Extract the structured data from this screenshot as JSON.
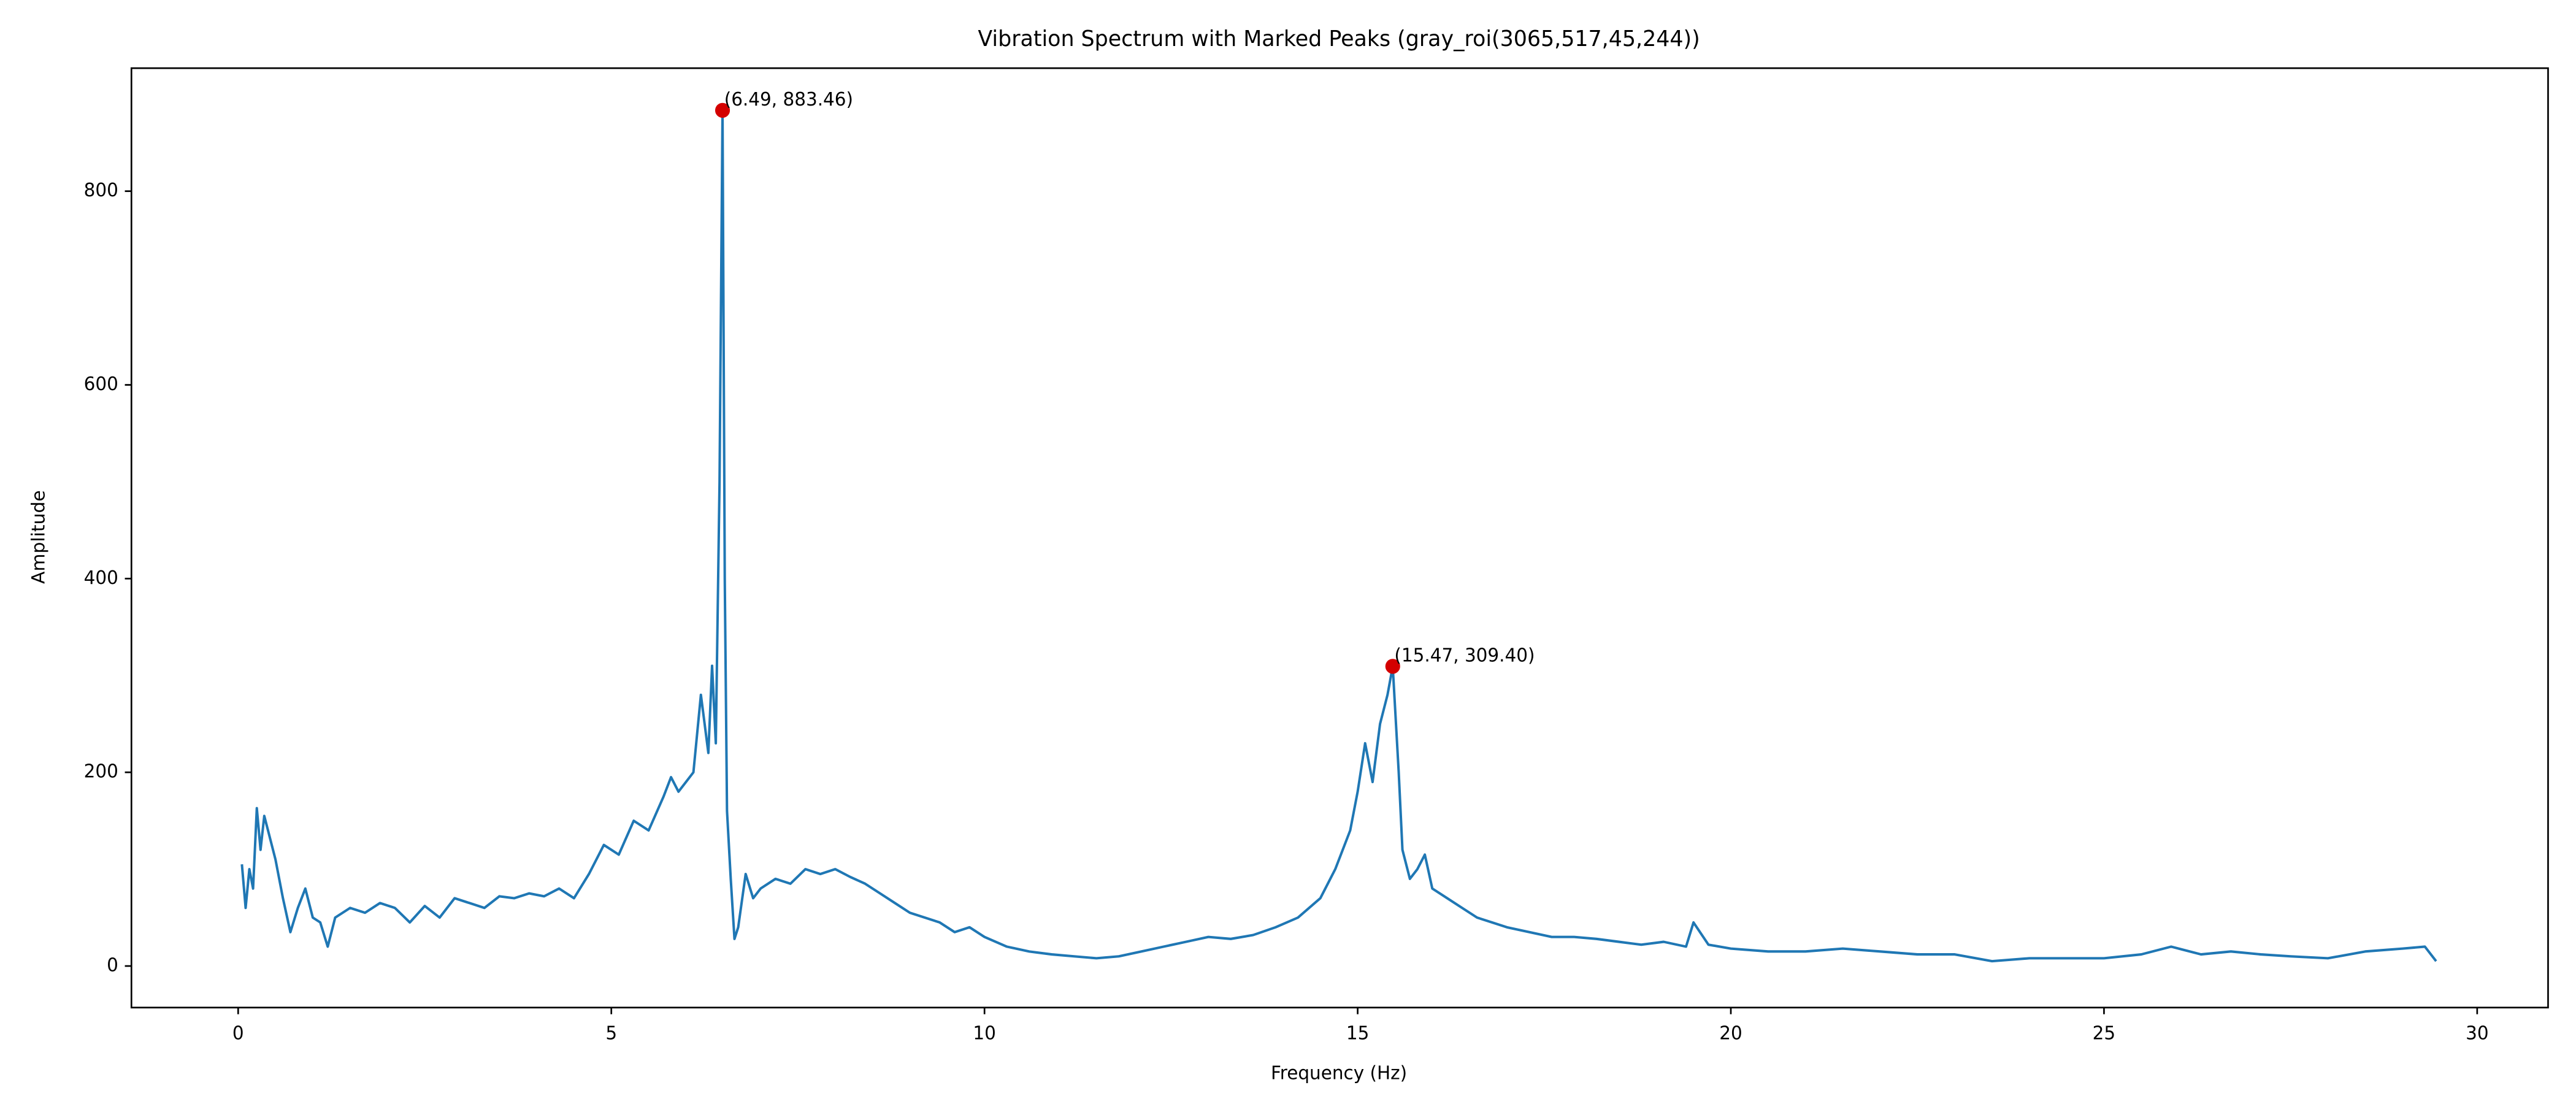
{
  "chart_data": {
    "type": "line",
    "title": "Vibration Spectrum with Marked Peaks (gray_roi(3065,517,45,244))",
    "xlabel": "Frequency (Hz)",
    "ylabel": "Amplitude",
    "xlim": [
      -1.43,
      30.95
    ],
    "ylim": [
      -42.9,
      927
    ],
    "xticks": [
      0,
      5,
      10,
      15,
      20,
      25,
      30
    ],
    "yticks": [
      0,
      200,
      400,
      600,
      800
    ],
    "grid": false,
    "series": [
      {
        "type": "line",
        "color": "#1f77b4",
        "x": [
          0.05,
          0.1,
          0.15,
          0.2,
          0.25,
          0.3,
          0.35,
          0.4,
          0.5,
          0.6,
          0.7,
          0.8,
          0.9,
          1.0,
          1.1,
          1.2,
          1.3,
          1.5,
          1.7,
          1.9,
          2.1,
          2.3,
          2.5,
          2.7,
          2.9,
          3.1,
          3.3,
          3.5,
          3.7,
          3.9,
          4.1,
          4.3,
          4.5,
          4.7,
          4.9,
          5.1,
          5.3,
          5.5,
          5.7,
          5.8,
          5.9,
          6.0,
          6.1,
          6.2,
          6.3,
          6.35,
          6.4,
          6.45,
          6.49,
          6.52,
          6.55,
          6.6,
          6.65,
          6.7,
          6.8,
          6.9,
          7.0,
          7.2,
          7.4,
          7.6,
          7.8,
          8.0,
          8.2,
          8.4,
          8.6,
          8.8,
          9.0,
          9.2,
          9.4,
          9.6,
          9.8,
          10.0,
          10.3,
          10.6,
          10.9,
          11.2,
          11.5,
          11.8,
          12.1,
          12.4,
          12.7,
          13.0,
          13.3,
          13.6,
          13.9,
          14.2,
          14.5,
          14.7,
          14.9,
          15.0,
          15.1,
          15.2,
          15.3,
          15.4,
          15.47,
          15.55,
          15.6,
          15.7,
          15.8,
          15.9,
          16.0,
          16.2,
          16.4,
          16.6,
          16.8,
          17.0,
          17.3,
          17.6,
          17.9,
          18.2,
          18.5,
          18.8,
          19.1,
          19.4,
          19.5,
          19.7,
          20.0,
          20.5,
          21.0,
          21.5,
          22.0,
          22.5,
          23.0,
          23.5,
          24.0,
          24.5,
          25.0,
          25.5,
          25.9,
          26.3,
          26.7,
          27.1,
          27.5,
          28.0,
          28.5,
          29.0,
          29.3,
          29.45
        ],
        "values": [
          105,
          60,
          100,
          80,
          163,
          120,
          155,
          140,
          110,
          70,
          35,
          60,
          80,
          50,
          45,
          20,
          50,
          60,
          55,
          65,
          60,
          45,
          62,
          50,
          70,
          65,
          60,
          72,
          70,
          75,
          72,
          80,
          70,
          95,
          125,
          115,
          150,
          140,
          175,
          195,
          180,
          190,
          200,
          280,
          220,
          310,
          230,
          500,
          883.46,
          400,
          160,
          90,
          28,
          40,
          95,
          70,
          80,
          90,
          85,
          100,
          95,
          100,
          92,
          85,
          75,
          65,
          55,
          50,
          45,
          35,
          40,
          30,
          20,
          15,
          12,
          10,
          8,
          10,
          15,
          20,
          25,
          30,
          28,
          32,
          40,
          50,
          70,
          100,
          140,
          180,
          230,
          190,
          250,
          280,
          309.4,
          200,
          120,
          90,
          100,
          115,
          80,
          70,
          60,
          50,
          45,
          40,
          35,
          30,
          30,
          28,
          25,
          22,
          25,
          20,
          45,
          22,
          18,
          15,
          15,
          18,
          15,
          12,
          12,
          5,
          8,
          8,
          8,
          12,
          20,
          12,
          15,
          12,
          10,
          8,
          15,
          18,
          20,
          5
        ]
      },
      {
        "type": "scatter",
        "color": "#d40000",
        "x": [
          6.49,
          15.47
        ],
        "values": [
          883.46,
          309.4
        ],
        "value_labels": [
          "(6.49, 883.46)",
          "(15.47, 309.40)"
        ]
      }
    ]
  }
}
